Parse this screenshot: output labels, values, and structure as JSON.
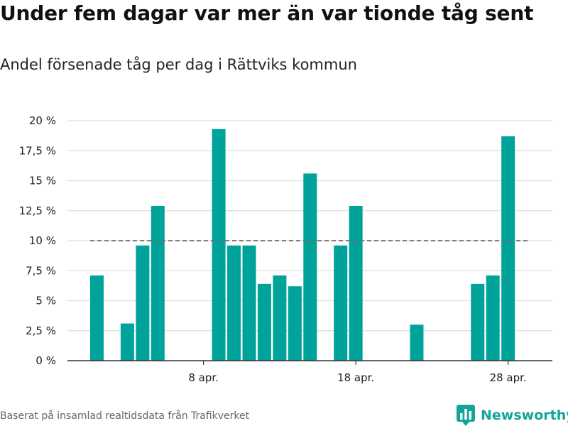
{
  "header": {
    "title": "Under fem dagar var mer än var tionde tåg sent",
    "subtitle": "Andel försenade tåg per dag i Rättviks kommun"
  },
  "footer": {
    "source": "Baserat på insamlad realtidsdata från Trafikverket",
    "brand": "Newsworthy"
  },
  "colors": {
    "bar": "#00a39a",
    "reference_line": "#707070",
    "grid": "#dddddd",
    "brand": "#13a59a"
  },
  "chart_data": {
    "type": "bar",
    "title": "Under fem dagar var mer än var tionde tåg sent",
    "subtitle": "Andel försenade tåg per dag i Rättviks kommun",
    "xlabel": "",
    "ylabel": "",
    "unit": "%",
    "x_start": "2024-04-01",
    "categories": [
      "1 apr.",
      "2 apr.",
      "3 apr.",
      "4 apr.",
      "5 apr.",
      "6 apr.",
      "7 apr.",
      "8 apr.",
      "9 apr.",
      "10 apr.",
      "11 apr.",
      "12 apr.",
      "13 apr.",
      "14 apr.",
      "15 apr.",
      "16 apr.",
      "17 apr.",
      "18 apr.",
      "19 apr.",
      "20 apr.",
      "21 apr.",
      "22 apr.",
      "23 apr.",
      "24 apr.",
      "25 apr.",
      "26 apr.",
      "27 apr.",
      "28 apr.",
      "29 apr."
    ],
    "values": [
      7.1,
      0,
      3.1,
      9.6,
      12.9,
      0,
      0,
      0,
      19.3,
      9.6,
      9.6,
      6.4,
      7.1,
      6.2,
      15.6,
      0,
      9.6,
      12.9,
      0,
      0,
      0,
      3.0,
      0,
      0,
      0,
      6.4,
      7.1,
      18.7,
      0
    ],
    "reference_line": {
      "value": 10,
      "style": "dashed"
    },
    "x_ticks": [
      {
        "label": "8 apr.",
        "index": 7
      },
      {
        "label": "18 apr.",
        "index": 17
      },
      {
        "label": "28 apr.",
        "index": 27
      }
    ],
    "y_ticks": [
      {
        "value": 0,
        "label": "0 %"
      },
      {
        "value": 2.5,
        "label": "2,5 %"
      },
      {
        "value": 5,
        "label": "5 %"
      },
      {
        "value": 7.5,
        "label": "7,5 %"
      },
      {
        "value": 10,
        "label": "10 %"
      },
      {
        "value": 12.5,
        "label": "12,5 %"
      },
      {
        "value": 15,
        "label": "15 %"
      },
      {
        "value": 17.5,
        "label": "17,5 %"
      },
      {
        "value": 20,
        "label": "20 %"
      }
    ],
    "ylim": [
      0,
      20
    ],
    "grid": true,
    "legend": "none"
  }
}
